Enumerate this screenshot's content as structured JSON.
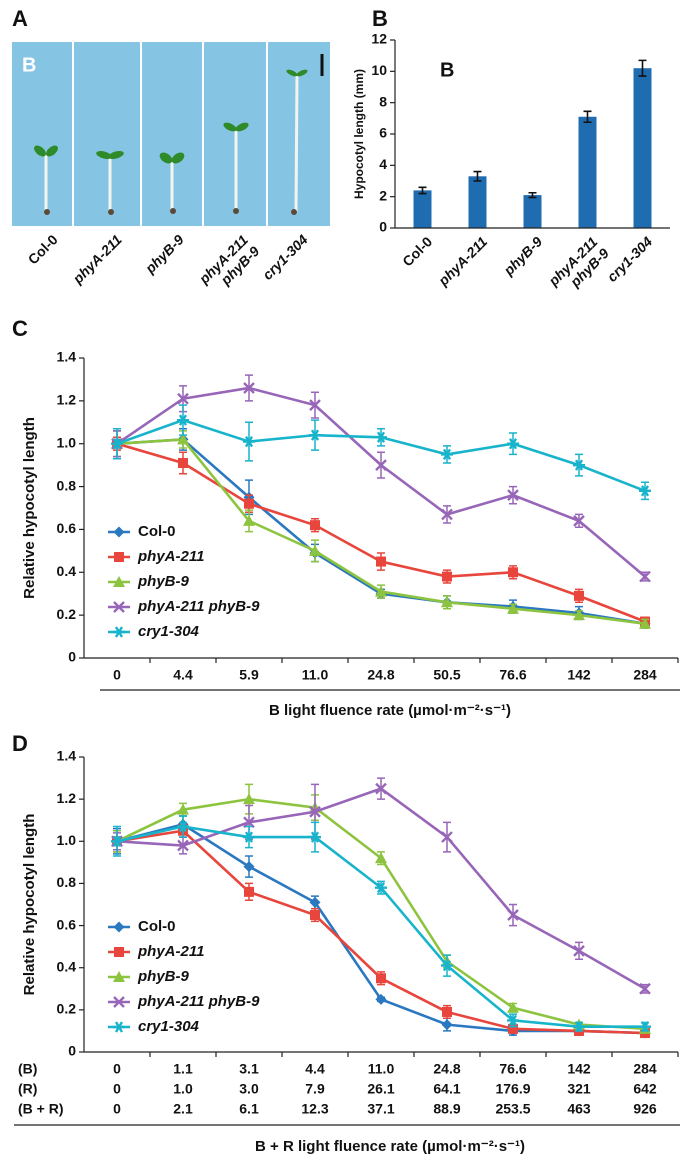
{
  "photo": {
    "panel_label": "A",
    "light_label": "B",
    "labels": [
      "Col-0",
      "phyA-211",
      "phyB-9",
      "phyA-211 phyB-9",
      "cry1-304"
    ]
  },
  "chart_data": [
    {
      "type": "bar",
      "panel_label": "B",
      "annotation": "B",
      "ylabel": "Hypocotyl length (mm)",
      "categories": [
        "Col-0",
        "phyA-211",
        "phyB-9",
        "phyA-211 phyB-9",
        "cry1-304"
      ],
      "values": [
        2.4,
        3.3,
        2.1,
        7.1,
        10.2
      ],
      "errors": [
        0.2,
        0.3,
        0.15,
        0.35,
        0.5
      ],
      "color": "#1f6cb0",
      "ylim": [
        0,
        12
      ],
      "yticks": [
        0,
        2,
        4,
        6,
        8,
        10,
        12
      ]
    },
    {
      "type": "line",
      "panel_label": "C",
      "ylabel": "Relative hypocotyl length",
      "xlabel": "B light fluence rate (µmol·m⁻²·s⁻¹)",
      "categories": [
        "0",
        "4.4",
        "5.9",
        "11.0",
        "24.8",
        "50.5",
        "76.6",
        "142",
        "284"
      ],
      "ylim": [
        0,
        1.4
      ],
      "yticks": [
        0,
        0.2,
        0.4,
        0.6,
        0.8,
        {
          "value": 1,
          "label": "1.0"
        },
        1.2,
        1.4
      ],
      "series": [
        {
          "name": "Col-0",
          "color": "#2a78c0",
          "marker": "diamond",
          "values": [
            1.0,
            1.02,
            0.75,
            0.49,
            0.3,
            0.26,
            0.24,
            0.21,
            0.16
          ],
          "errors": [
            0.06,
            0.05,
            0.08,
            0.04,
            0.02,
            0.03,
            0.03,
            0.03,
            0.02
          ]
        },
        {
          "name": "phyA-211",
          "color": "#e8453c",
          "marker": "square",
          "values": [
            1.0,
            0.91,
            0.72,
            0.62,
            0.45,
            0.38,
            0.4,
            0.29,
            0.17
          ],
          "errors": [
            0.03,
            0.05,
            0.04,
            0.03,
            0.04,
            0.03,
            0.03,
            0.03,
            0.02
          ]
        },
        {
          "name": "phyB-9",
          "color": "#8dc43f",
          "marker": "triangle",
          "values": [
            1.0,
            1.02,
            0.64,
            0.5,
            0.31,
            0.26,
            0.23,
            0.2,
            0.16
          ],
          "errors": [
            0.06,
            0.04,
            0.05,
            0.05,
            0.03,
            0.03,
            0.02,
            0.02,
            0.02
          ]
        },
        {
          "name": "phyA-211 phyB-9",
          "color": "#9866b8",
          "marker": "x",
          "values": [
            1.0,
            1.21,
            1.26,
            1.18,
            0.9,
            0.67,
            0.76,
            0.64,
            0.38
          ],
          "errors": [
            0.06,
            0.06,
            0.06,
            0.06,
            0.06,
            0.04,
            0.04,
            0.03,
            0.02
          ]
        },
        {
          "name": "cry1-304",
          "color": "#18b4cc",
          "marker": "asterisk",
          "values": [
            1.0,
            1.11,
            1.01,
            1.04,
            1.03,
            0.95,
            1.0,
            0.9,
            0.78
          ],
          "errors": [
            0.07,
            0.07,
            0.09,
            0.07,
            0.04,
            0.04,
            0.05,
            0.05,
            0.04
          ]
        }
      ]
    },
    {
      "type": "line",
      "panel_label": "D",
      "ylabel": "Relative hypocotyl length",
      "xlabel": "B + R light fluence rate (µmol·m⁻²·s⁻¹)",
      "category_name": "(B)",
      "categories": [
        "0",
        "1.1",
        "3.1",
        "4.4",
        "11.0",
        "24.8",
        "76.6",
        "142",
        "284"
      ],
      "extra_category_rows": [
        {
          "name": "(R)",
          "labels": [
            "0",
            "1.0",
            "3.0",
            "7.9",
            "26.1",
            "64.1",
            "176.9",
            "321",
            "642"
          ]
        },
        {
          "name": "(B + R)",
          "labels": [
            "0",
            "2.1",
            "6.1",
            "12.3",
            "37.1",
            "88.9",
            "253.5",
            "463",
            "926"
          ]
        }
      ],
      "ylim": [
        0,
        1.4
      ],
      "yticks": [
        0,
        0.2,
        0.4,
        0.6,
        0.8,
        {
          "value": 1,
          "label": "1.0"
        },
        1.2,
        1.4
      ],
      "series": [
        {
          "name": "Col-0",
          "color": "#2a78c0",
          "marker": "diamond",
          "values": [
            1.0,
            1.08,
            0.88,
            0.71,
            0.25,
            0.13,
            0.1,
            0.1,
            0.09
          ],
          "errors": [
            0.06,
            0.04,
            0.05,
            0.03,
            0.01,
            0.03,
            0.02,
            0.02,
            0.02
          ]
        },
        {
          "name": "phyA-211",
          "color": "#e8453c",
          "marker": "square",
          "values": [
            1.0,
            1.05,
            0.76,
            0.65,
            0.35,
            0.19,
            0.11,
            0.1,
            0.09
          ],
          "errors": [
            0.05,
            0.03,
            0.04,
            0.03,
            0.03,
            0.03,
            0.02,
            0.02,
            0.02
          ]
        },
        {
          "name": "phyB-9",
          "color": "#8dc43f",
          "marker": "triangle",
          "values": [
            1.0,
            1.15,
            1.2,
            1.16,
            0.92,
            0.43,
            0.21,
            0.13,
            0.11
          ],
          "errors": [
            0.05,
            0.03,
            0.07,
            0.06,
            0.03,
            0.03,
            0.02,
            0.01,
            0.01
          ]
        },
        {
          "name": "phyA-211 phyB-9",
          "color": "#9866b8",
          "marker": "x",
          "values": [
            1.0,
            0.98,
            1.09,
            1.14,
            1.25,
            1.02,
            0.65,
            0.48,
            0.3
          ],
          "errors": [
            0.04,
            0.04,
            0.08,
            0.13,
            0.05,
            0.07,
            0.05,
            0.04,
            0.02
          ]
        },
        {
          "name": "cry1-304",
          "color": "#18b4cc",
          "marker": "asterisk",
          "values": [
            1.0,
            1.07,
            1.02,
            1.02,
            0.78,
            0.41,
            0.15,
            0.12,
            0.12
          ],
          "errors": [
            0.07,
            0.05,
            0.05,
            0.07,
            0.03,
            0.05,
            0.03,
            0.02,
            0.02
          ]
        }
      ]
    }
  ]
}
